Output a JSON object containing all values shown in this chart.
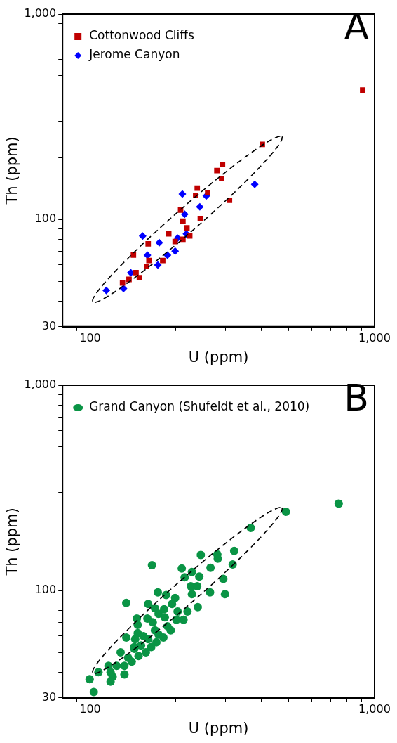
{
  "chart_data": [
    {
      "type": "scatter",
      "title": "A",
      "xlabel": "U (ppm)",
      "ylabel": "Th (ppm)",
      "log": "xy",
      "legend": "top left",
      "grid": false,
      "xlim": [
        80,
        1000
      ],
      "ylim": [
        30,
        1000
      ],
      "xticks": [
        {
          "value": 90,
          "label": null
        },
        {
          "value": 100,
          "label": "100"
        },
        {
          "value": 200,
          "label": null
        },
        {
          "value": 300,
          "label": null
        },
        {
          "value": 400,
          "label": null
        },
        {
          "value": 500,
          "label": null
        },
        {
          "value": 600,
          "label": null
        },
        {
          "value": 700,
          "label": null
        },
        {
          "value": 800,
          "label": null
        },
        {
          "value": 900,
          "label": null
        },
        {
          "value": 1000,
          "label": "1,000"
        }
      ],
      "yticks": [
        {
          "value": 30,
          "label": "30"
        },
        {
          "value": 40,
          "label": null
        },
        {
          "value": 50,
          "label": null
        },
        {
          "value": 60,
          "label": null
        },
        {
          "value": 70,
          "label": null
        },
        {
          "value": 80,
          "label": null
        },
        {
          "value": 90,
          "label": null
        },
        {
          "value": 100,
          "label": "100"
        },
        {
          "value": 200,
          "label": null
        },
        {
          "value": 300,
          "label": null
        },
        {
          "value": 400,
          "label": null
        },
        {
          "value": 500,
          "label": null
        },
        {
          "value": 600,
          "label": null
        },
        {
          "value": 700,
          "label": null
        },
        {
          "value": 800,
          "label": null
        },
        {
          "value": 900,
          "label": null
        },
        {
          "value": 1000,
          "label": "1,000"
        }
      ],
      "series": [
        {
          "name": "Cottonwood Cliffs",
          "color": "#c00000",
          "marker": "square",
          "x": [
            908,
            403,
            292,
            279,
            290,
            238,
            235,
            259,
            309,
            244,
            208,
            212,
            219,
            224,
            212,
            189,
            199,
            160,
            142,
            161,
            180,
            158,
            145,
            149,
            137,
            130
          ],
          "values": [
            426,
            232,
            185,
            173,
            158,
            142,
            131,
            135,
            124,
            101,
            111,
            98,
            91,
            83,
            80,
            85,
            78,
            76,
            67,
            63,
            63,
            59,
            55,
            52,
            51,
            49
          ]
        },
        {
          "name": "Jerome Canyon",
          "color": "#0000ff",
          "marker": "diamond",
          "x": [
            379,
            211,
            256,
            243,
            215,
            153,
            203,
            218,
            175,
            159,
            187,
            199,
            173,
            139,
            131,
            114
          ],
          "values": [
            148,
            133,
            130,
            115,
            106,
            83,
            81,
            85,
            77,
            67,
            67,
            70,
            60,
            55,
            46,
            45
          ]
        }
      ]
    },
    {
      "type": "scatter",
      "title": "B",
      "xlabel": "U (ppm)",
      "ylabel": "Th (ppm)",
      "log": "xy",
      "legend": "top left",
      "grid": false,
      "xlim": [
        80,
        1000
      ],
      "ylim": [
        30,
        1000
      ],
      "xticks": [
        {
          "value": 90,
          "label": null
        },
        {
          "value": 100,
          "label": "100"
        },
        {
          "value": 200,
          "label": null
        },
        {
          "value": 300,
          "label": null
        },
        {
          "value": 400,
          "label": null
        },
        {
          "value": 500,
          "label": null
        },
        {
          "value": 600,
          "label": null
        },
        {
          "value": 700,
          "label": null
        },
        {
          "value": 800,
          "label": null
        },
        {
          "value": 900,
          "label": null
        },
        {
          "value": 1000,
          "label": "1,000"
        }
      ],
      "yticks": [
        {
          "value": 30,
          "label": "30"
        },
        {
          "value": 40,
          "label": null
        },
        {
          "value": 50,
          "label": null
        },
        {
          "value": 60,
          "label": null
        },
        {
          "value": 70,
          "label": null
        },
        {
          "value": 80,
          "label": null
        },
        {
          "value": 90,
          "label": null
        },
        {
          "value": 100,
          "label": "100"
        },
        {
          "value": 200,
          "label": null
        },
        {
          "value": 300,
          "label": null
        },
        {
          "value": 400,
          "label": null
        },
        {
          "value": 500,
          "label": null
        },
        {
          "value": 600,
          "label": null
        },
        {
          "value": 700,
          "label": null
        },
        {
          "value": 800,
          "label": null
        },
        {
          "value": 900,
          "label": null
        },
        {
          "value": 1000,
          "label": "1,000"
        }
      ],
      "series": [
        {
          "name": "Grand Canyon (Shufeldt et al., 2010)",
          "color": "#0a9445",
          "marker": "circle",
          "x": [
            748,
            488,
            367,
            321,
            280,
            281,
            245,
            317,
            265,
            165,
            210,
            228,
            242,
            215,
            294,
            226,
            238,
            228,
            264,
            298,
            173,
            185,
            199,
            134,
            239,
            220,
            203,
            194,
            182,
            169,
            160,
            174,
            183,
            201,
            213,
            159,
            166,
            146,
            147,
            187,
            192,
            169,
            174,
            147,
            154,
            160,
            181,
            134,
            144,
            171,
            164,
            151,
            143,
            143,
            128,
            157,
            148,
            136,
            140,
            132,
            124,
            116,
            107,
            118,
            120,
            132,
            118,
            99.6,
            103
          ],
          "values": [
            265,
            242,
            202,
            156,
            150,
            143,
            149,
            134,
            129,
            133,
            128,
            123,
            117,
            116,
            114,
            105,
            105,
            96,
            98,
            96,
            98,
            95,
            92,
            87,
            83,
            79,
            79,
            86,
            81,
            82,
            86,
            77,
            74,
            72,
            72,
            73,
            70,
            73,
            68,
            67,
            64,
            64,
            61,
            62,
            60,
            58,
            59,
            59,
            58,
            56,
            53,
            54,
            53,
            52,
            50,
            50,
            48,
            47,
            45,
            43,
            43,
            43,
            40,
            40,
            38,
            39,
            36,
            37,
            32
          ]
        }
      ]
    }
  ]
}
